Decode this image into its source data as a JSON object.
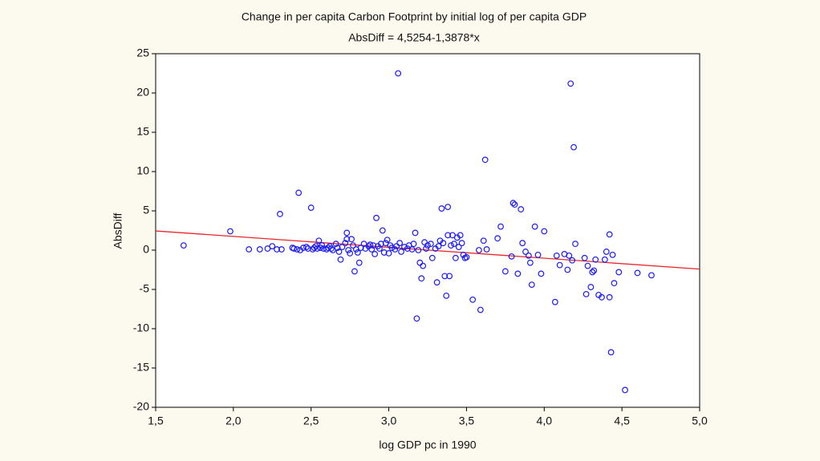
{
  "chart_data": {
    "type": "scatter",
    "title": "Change in per capita Carbon Footprint by initial log of per capita GDP",
    "subtitle": "AbsDiff = 4,5254-1,3878*x",
    "xlabel": "log GDP pc in 1990",
    "ylabel": "AbsDiff",
    "xlim": [
      1.5,
      5.0
    ],
    "ylim": [
      -20,
      25
    ],
    "xticks": [
      {
        "value": 1.5,
        "label": "1,5"
      },
      {
        "value": 2.0,
        "label": "2,0"
      },
      {
        "value": 2.5,
        "label": "2,5"
      },
      {
        "value": 3.0,
        "label": "3,0"
      },
      {
        "value": 3.5,
        "label": "3,5"
      },
      {
        "value": 4.0,
        "label": "4,0"
      },
      {
        "value": 4.5,
        "label": "4,5"
      },
      {
        "value": 5.0,
        "label": "5,0"
      }
    ],
    "yticks": [
      -20,
      -15,
      -10,
      -5,
      0,
      5,
      10,
      15,
      20,
      25
    ],
    "grid": false,
    "color": "#1a1aff",
    "x": [
      1.68,
      1.98,
      2.1,
      2.17,
      2.22,
      2.25,
      2.28,
      2.3,
      2.31,
      2.38,
      2.39,
      2.41,
      2.42,
      2.43,
      2.45,
      2.47,
      2.48,
      2.5,
      2.51,
      2.52,
      2.53,
      2.54,
      2.55,
      2.56,
      2.57,
      2.58,
      2.6,
      2.61,
      2.62,
      2.63,
      2.64,
      2.66,
      2.67,
      2.68,
      2.69,
      2.7,
      2.72,
      2.73,
      2.73,
      2.74,
      2.75,
      2.76,
      2.77,
      2.78,
      2.79,
      2.8,
      2.81,
      2.82,
      2.84,
      2.85,
      2.87,
      2.88,
      2.89,
      2.9,
      2.91,
      2.92,
      2.93,
      2.94,
      2.95,
      2.96,
      2.97,
      2.98,
      2.99,
      3.0,
      3.01,
      3.02,
      3.04,
      3.05,
      3.06,
      3.07,
      3.08,
      3.1,
      3.12,
      3.13,
      3.15,
      3.16,
      3.17,
      3.18,
      3.19,
      3.2,
      3.21,
      3.22,
      3.23,
      3.24,
      3.25,
      3.27,
      3.28,
      3.3,
      3.31,
      3.32,
      3.33,
      3.34,
      3.35,
      3.36,
      3.37,
      3.38,
      3.38,
      3.39,
      3.4,
      3.41,
      3.42,
      3.43,
      3.44,
      3.45,
      3.46,
      3.47,
      3.48,
      3.49,
      3.5,
      3.54,
      3.58,
      3.59,
      3.61,
      3.62,
      3.63,
      3.7,
      3.72,
      3.75,
      3.79,
      3.8,
      3.81,
      3.83,
      3.85,
      3.86,
      3.88,
      3.9,
      3.91,
      3.92,
      3.94,
      3.96,
      3.98,
      4.0,
      4.07,
      4.08,
      4.1,
      4.13,
      4.15,
      4.16,
      4.17,
      4.18,
      4.19,
      4.2,
      4.26,
      4.27,
      4.28,
      4.3,
      4.31,
      4.32,
      4.33,
      4.35,
      4.37,
      4.39,
      4.4,
      4.42,
      4.42,
      4.43,
      4.44,
      4.45,
      4.48,
      4.52,
      4.6,
      4.69
    ],
    "values": [
      0.6,
      2.4,
      0.1,
      0.1,
      0.2,
      0.5,
      0.1,
      4.6,
      0.1,
      0.3,
      0.2,
      0.1,
      7.3,
      0.0,
      0.3,
      0.4,
      0.2,
      5.4,
      0.1,
      0.3,
      0.5,
      0.2,
      1.2,
      0.3,
      0.6,
      0.2,
      0.1,
      0.3,
      0.5,
      0.2,
      0.0,
      0.8,
      0.3,
      -0.2,
      -1.2,
      0.4,
      0.9,
      1.4,
      2.2,
      0.0,
      -0.4,
      1.4,
      0.6,
      -2.7,
      0.1,
      -0.3,
      -1.6,
      0.3,
      0.8,
      0.2,
      0.5,
      0.7,
      0.1,
      0.6,
      -0.5,
      4.1,
      0.5,
      0.2,
      0.8,
      2.5,
      -0.3,
      0.9,
      1.3,
      -0.4,
      0.6,
      0.3,
      0.1,
      0.5,
      22.5,
      0.9,
      -0.2,
      0.4,
      0.2,
      0.6,
      0.1,
      0.8,
      2.2,
      -8.7,
      0.0,
      -1.6,
      -3.6,
      -2.0,
      1.0,
      0.2,
      0.6,
      0.8,
      -1.0,
      0.2,
      -4.1,
      0.5,
      1.2,
      5.3,
      0.9,
      -3.3,
      -5.8,
      5.5,
      1.9,
      -3.3,
      0.6,
      1.9,
      0.8,
      -1.0,
      1.6,
      0.4,
      1.9,
      0.9,
      -0.6,
      -1.0,
      -0.9,
      -6.3,
      0.0,
      -7.6,
      1.2,
      11.5,
      0.1,
      1.5,
      3.0,
      -2.7,
      -0.8,
      6.0,
      5.8,
      -3.0,
      5.2,
      0.9,
      -0.2,
      -0.7,
      -1.6,
      -4.4,
      3.0,
      -0.6,
      -3.0,
      2.4,
      -6.6,
      -0.7,
      -1.9,
      -0.5,
      -2.5,
      -0.7,
      21.2,
      -1.3,
      13.1,
      0.8,
      -1.0,
      -5.6,
      -2.0,
      -4.7,
      -2.8,
      -2.6,
      -1.2,
      -5.7,
      -6.0,
      -1.2,
      -0.2,
      2.0,
      -6.0,
      -13.0,
      -0.6,
      -4.2,
      -2.8,
      -17.8,
      -2.9,
      -3.2
    ],
    "fit_line": {
      "color": "#e8262b",
      "x": [
        1.5,
        5.0
      ],
      "values": [
        2.4437,
        -2.4136
      ]
    }
  }
}
